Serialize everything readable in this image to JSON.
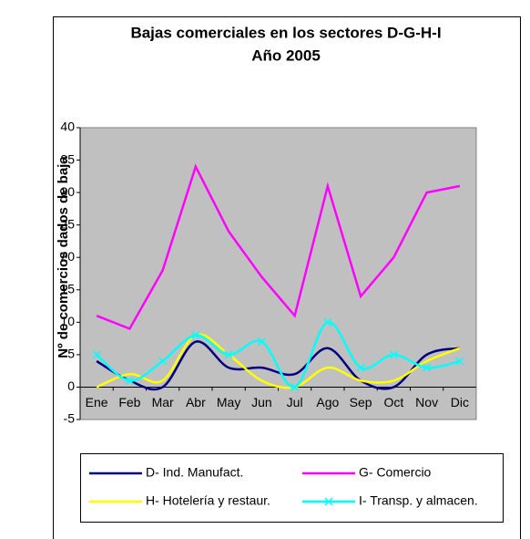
{
  "chart_data": {
    "type": "line",
    "title": "Bajas comerciales en los sectores D-G-H-I",
    "subtitle": "Año 2005",
    "y_label": "Nº de comercios dados de baja",
    "categories": [
      "Ene",
      "Feb",
      "Mar",
      "Abr",
      "May",
      "Jun",
      "Jul",
      "Ago",
      "Sep",
      "Oct",
      "Nov",
      "Dic"
    ],
    "series": [
      {
        "name": "D- Ind. Manufact.",
        "color": "#000080",
        "smooth": true,
        "marker": null,
        "values": [
          4,
          1,
          0,
          7,
          3,
          3,
          2,
          6,
          1,
          0,
          5,
          6
        ]
      },
      {
        "name": "G- Comercio",
        "color": "#ff00ff",
        "smooth": false,
        "marker": null,
        "values": [
          11,
          9,
          18,
          34,
          24,
          17,
          11,
          31,
          14,
          20,
          30,
          31
        ]
      },
      {
        "name": "H- Hotelería y restaur.",
        "color": "#ffff00",
        "smooth": true,
        "marker": null,
        "values": [
          0,
          2,
          1,
          8,
          5,
          1,
          0,
          3,
          1,
          1,
          4,
          6
        ]
      },
      {
        "name": "I- Transp. y almacen.",
        "color": "#00ffff",
        "smooth": true,
        "marker": "x",
        "values": [
          5,
          1,
          4,
          8,
          5,
          7,
          0,
          10,
          3,
          5,
          3,
          4
        ]
      }
    ],
    "ylim": [
      -5,
      40
    ],
    "yticks": [
      -5,
      0,
      5,
      10,
      15,
      20,
      25,
      30,
      35,
      40
    ],
    "grid": false,
    "plot_background": "#c0c0c0",
    "legend": "bottom"
  }
}
